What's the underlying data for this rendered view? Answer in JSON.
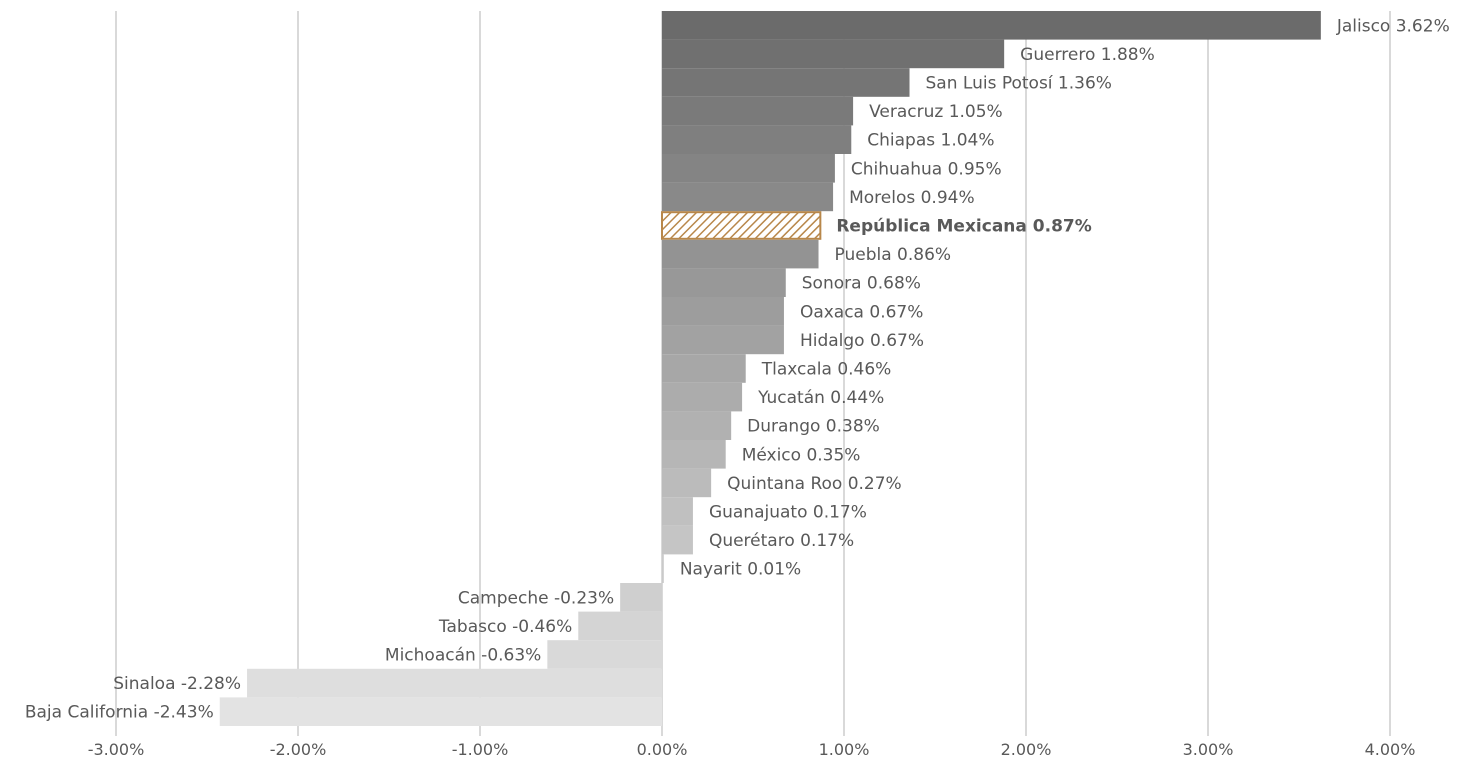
{
  "chart_data": {
    "type": "bar",
    "orientation": "horizontal",
    "title": "",
    "xlabel": "",
    "ylabel": "",
    "xlim": [
      -3.0,
      4.0
    ],
    "grid": true,
    "legend": "none",
    "highlight_category": "República Mexicana",
    "highlight_color": "#b8874a",
    "bar_color_dark": "#6b6b6b",
    "bar_color_light": "#e3e3e3",
    "gridline_color": "#d9d9d9",
    "x_ticks": [
      -3,
      -2,
      -1,
      0,
      1,
      2,
      3,
      4
    ],
    "x_tick_labels": [
      "-3.00%",
      "-2.00%",
      "-1.00%",
      "0.00%",
      "1.00%",
      "2.00%",
      "3.00%",
      "4.00%"
    ],
    "categories": [
      "Jalisco",
      "Guerrero",
      "San Luis Potosí",
      "Veracruz",
      "Chiapas",
      "Chihuahua",
      "Morelos",
      "República Mexicana",
      "Puebla",
      "Sonora",
      "Oaxaca",
      "Hidalgo",
      "Tlaxcala",
      "Yucatán",
      "Durango",
      "México",
      "Quintana Roo",
      "Guanajuato",
      "Querétaro",
      "Nayarit",
      "Campeche",
      "Tabasco",
      "Michoacán",
      "Sinaloa",
      "Baja California"
    ],
    "values": [
      3.62,
      1.88,
      1.36,
      1.05,
      1.04,
      0.95,
      0.94,
      0.87,
      0.86,
      0.68,
      0.67,
      0.67,
      0.46,
      0.44,
      0.38,
      0.35,
      0.27,
      0.17,
      0.17,
      0.01,
      -0.23,
      -0.46,
      -0.63,
      -2.28,
      -2.43
    ],
    "labels": [
      "Jalisco 3.62%",
      "Guerrero 1.88%",
      "San Luis Potosí 1.36%",
      "Veracruz 1.05%",
      "Chiapas 1.04%",
      "Chihuahua 0.95%",
      "Morelos 0.94%",
      "República Mexicana 0.87%",
      "Puebla 0.86%",
      "Sonora 0.68%",
      "Oaxaca 0.67%",
      "Hidalgo 0.67%",
      "Tlaxcala 0.46%",
      "Yucatán 0.44%",
      "Durango 0.38%",
      "México 0.35%",
      "Quintana Roo 0.27%",
      "Guanajuato 0.17%",
      "Querétaro 0.17%",
      "Nayarit 0.01%",
      "Campeche -0.23%",
      "Tabasco -0.46%",
      "Michoacán -0.63%",
      "Sinaloa -2.28%",
      "Baja California -2.43%"
    ]
  }
}
